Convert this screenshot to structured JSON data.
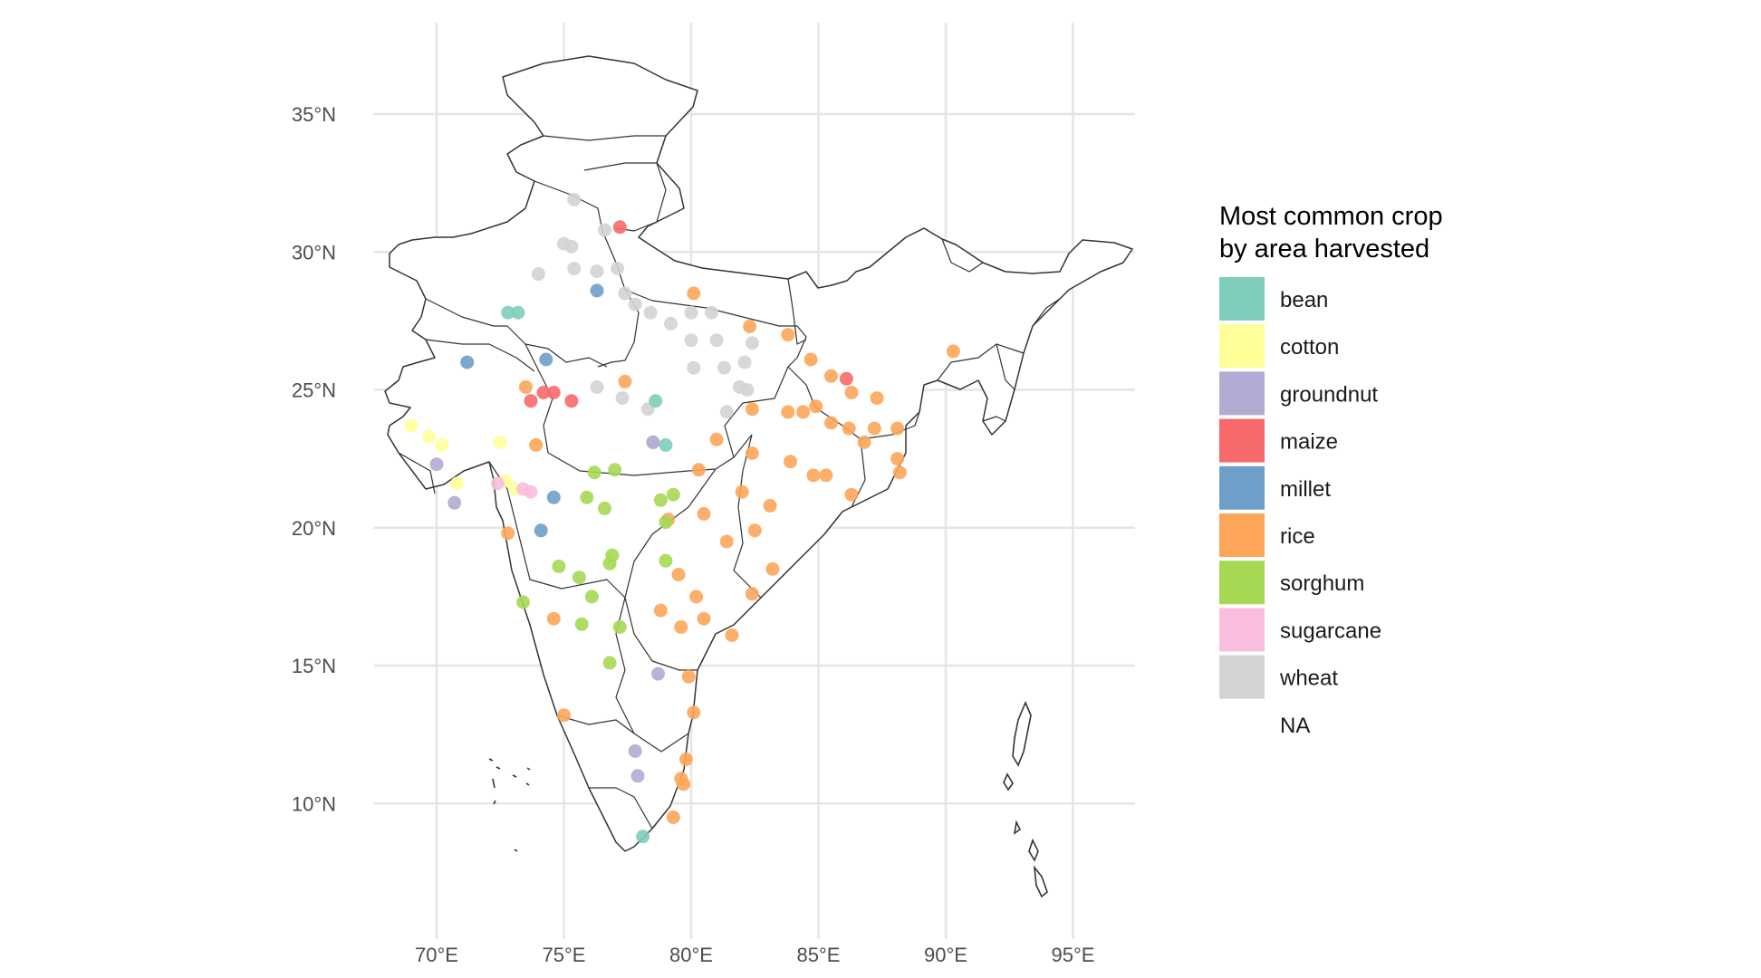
{
  "chart_data": {
    "type": "scatter",
    "xlim": [
      67.5,
      97.5
    ],
    "ylim": [
      6.0,
      37.0
    ],
    "grid": true,
    "legend_position": "right",
    "x_ticks": [
      {
        "value": 70,
        "label": "70°E"
      },
      {
        "value": 75,
        "label": "75°E"
      },
      {
        "value": 80,
        "label": "80°E"
      },
      {
        "value": 85,
        "label": "85°E"
      },
      {
        "value": 90,
        "label": "90°E"
      },
      {
        "value": 95,
        "label": "95°E"
      }
    ],
    "y_ticks": [
      {
        "value": 10,
        "label": "10°N"
      },
      {
        "value": 15,
        "label": "15°N"
      },
      {
        "value": 20,
        "label": "20°N"
      },
      {
        "value": 25,
        "label": "25°N"
      },
      {
        "value": 30,
        "label": "30°N"
      },
      {
        "value": 35,
        "label": "35°N"
      }
    ],
    "legend": {
      "title_lines": [
        "Most common crop",
        "by area harvested"
      ],
      "items": [
        {
          "label": "bean",
          "color": "#7FCDBB"
        },
        {
          "label": "cotton",
          "color": "#FFFF99"
        },
        {
          "label": "groundnut",
          "color": "#B3ABD3"
        },
        {
          "label": "maize",
          "color": "#F8696B"
        },
        {
          "label": "millet",
          "color": "#6E9FC9"
        },
        {
          "label": "rice",
          "color": "#FDA65A"
        },
        {
          "label": "sorghum",
          "color": "#A6D854"
        },
        {
          "label": "sugarcane",
          "color": "#F9BEDD"
        },
        {
          "label": "wheat",
          "color": "#D3D3D3"
        },
        {
          "label": "NA",
          "color": null
        }
      ]
    },
    "series": [
      {
        "name": "wheat",
        "points": [
          [
            75.4,
            31.9
          ],
          [
            76.6,
            30.8
          ],
          [
            75.0,
            30.3
          ],
          [
            75.3,
            30.2
          ],
          [
            74.0,
            29.2
          ],
          [
            75.4,
            29.4
          ],
          [
            76.3,
            29.3
          ],
          [
            77.1,
            29.4
          ],
          [
            77.4,
            28.5
          ],
          [
            77.8,
            28.1
          ],
          [
            78.4,
            27.8
          ],
          [
            79.2,
            27.4
          ],
          [
            80.0,
            27.8
          ],
          [
            80.8,
            27.8
          ],
          [
            81.0,
            26.8
          ],
          [
            80.0,
            26.8
          ],
          [
            82.4,
            26.7
          ],
          [
            82.1,
            26.0
          ],
          [
            81.3,
            25.8
          ],
          [
            81.9,
            25.1
          ],
          [
            82.2,
            25.0
          ],
          [
            76.3,
            25.1
          ],
          [
            77.3,
            24.7
          ],
          [
            78.3,
            24.3
          ],
          [
            78.5,
            23.1
          ],
          [
            80.1,
            25.8
          ],
          [
            81.4,
            24.2
          ]
        ]
      },
      {
        "name": "rice",
        "points": [
          [
            80.1,
            28.5
          ],
          [
            82.3,
            27.3
          ],
          [
            83.8,
            27.0
          ],
          [
            84.7,
            26.1
          ],
          [
            85.5,
            25.5
          ],
          [
            86.3,
            24.9
          ],
          [
            87.3,
            24.7
          ],
          [
            84.4,
            24.2
          ],
          [
            83.8,
            24.2
          ],
          [
            82.4,
            24.3
          ],
          [
            84.9,
            24.4
          ],
          [
            85.5,
            23.8
          ],
          [
            86.2,
            23.6
          ],
          [
            87.2,
            23.6
          ],
          [
            88.1,
            23.6
          ],
          [
            86.8,
            23.1
          ],
          [
            88.1,
            22.5
          ],
          [
            88.2,
            22.0
          ],
          [
            85.3,
            21.9
          ],
          [
            86.3,
            21.2
          ],
          [
            84.8,
            21.9
          ],
          [
            83.9,
            22.4
          ],
          [
            82.4,
            22.7
          ],
          [
            81.0,
            23.2
          ],
          [
            80.3,
            22.1
          ],
          [
            82.0,
            21.3
          ],
          [
            83.1,
            20.8
          ],
          [
            82.5,
            19.9
          ],
          [
            83.2,
            18.5
          ],
          [
            81.4,
            19.5
          ],
          [
            80.5,
            20.5
          ],
          [
            79.1,
            20.3
          ],
          [
            79.5,
            18.3
          ],
          [
            80.2,
            17.5
          ],
          [
            80.5,
            16.7
          ],
          [
            79.6,
            16.4
          ],
          [
            78.8,
            17.0
          ],
          [
            79.9,
            14.6
          ],
          [
            80.1,
            13.3
          ],
          [
            79.8,
            11.6
          ],
          [
            79.6,
            10.9
          ],
          [
            79.7,
            10.7
          ],
          [
            79.3,
            9.5
          ],
          [
            75.0,
            13.2
          ],
          [
            74.6,
            16.7
          ],
          [
            73.5,
            25.1
          ],
          [
            77.4,
            25.3
          ],
          [
            90.3,
            26.4
          ],
          [
            73.9,
            23.0
          ],
          [
            72.8,
            19.8
          ],
          [
            82.4,
            17.6
          ],
          [
            81.6,
            16.1
          ]
        ]
      },
      {
        "name": "sorghum",
        "points": [
          [
            77.0,
            22.1
          ],
          [
            76.2,
            22.0
          ],
          [
            75.9,
            21.1
          ],
          [
            76.6,
            20.7
          ],
          [
            76.9,
            19.0
          ],
          [
            76.8,
            18.7
          ],
          [
            75.6,
            18.2
          ],
          [
            74.8,
            18.6
          ],
          [
            75.7,
            16.5
          ],
          [
            76.1,
            17.5
          ],
          [
            77.2,
            16.4
          ],
          [
            76.8,
            15.1
          ],
          [
            79.3,
            21.2
          ],
          [
            78.8,
            21.0
          ],
          [
            79.0,
            20.2
          ],
          [
            79.0,
            18.8
          ],
          [
            73.4,
            17.3
          ]
        ]
      },
      {
        "name": "bean",
        "points": [
          [
            72.8,
            27.8
          ],
          [
            73.2,
            27.8
          ],
          [
            78.6,
            24.6
          ],
          [
            79.0,
            23.0
          ],
          [
            78.1,
            8.8
          ]
        ]
      },
      {
        "name": "cotton",
        "points": [
          [
            69.0,
            23.7
          ],
          [
            69.7,
            23.3
          ],
          [
            70.2,
            23.0
          ],
          [
            70.8,
            21.6
          ],
          [
            72.5,
            23.1
          ],
          [
            72.7,
            21.7
          ],
          [
            73.1,
            21.4
          ]
        ]
      },
      {
        "name": "groundnut",
        "points": [
          [
            70.0,
            22.3
          ],
          [
            70.7,
            20.9
          ],
          [
            78.7,
            14.7
          ],
          [
            77.8,
            11.9
          ],
          [
            77.9,
            11.0
          ],
          [
            78.5,
            23.1
          ]
        ]
      },
      {
        "name": "maize",
        "points": [
          [
            73.7,
            24.6
          ],
          [
            74.2,
            24.9
          ],
          [
            74.6,
            24.9
          ],
          [
            75.3,
            24.6
          ],
          [
            77.2,
            30.9
          ],
          [
            86.1,
            25.4
          ]
        ]
      },
      {
        "name": "millet",
        "points": [
          [
            71.2,
            26.0
          ],
          [
            74.3,
            26.1
          ],
          [
            76.3,
            28.6
          ],
          [
            74.1,
            19.9
          ],
          [
            74.6,
            21.1
          ]
        ]
      },
      {
        "name": "sugarcane",
        "points": [
          [
            73.4,
            21.4
          ],
          [
            73.7,
            21.3
          ],
          [
            72.4,
            21.6
          ]
        ]
      }
    ]
  }
}
